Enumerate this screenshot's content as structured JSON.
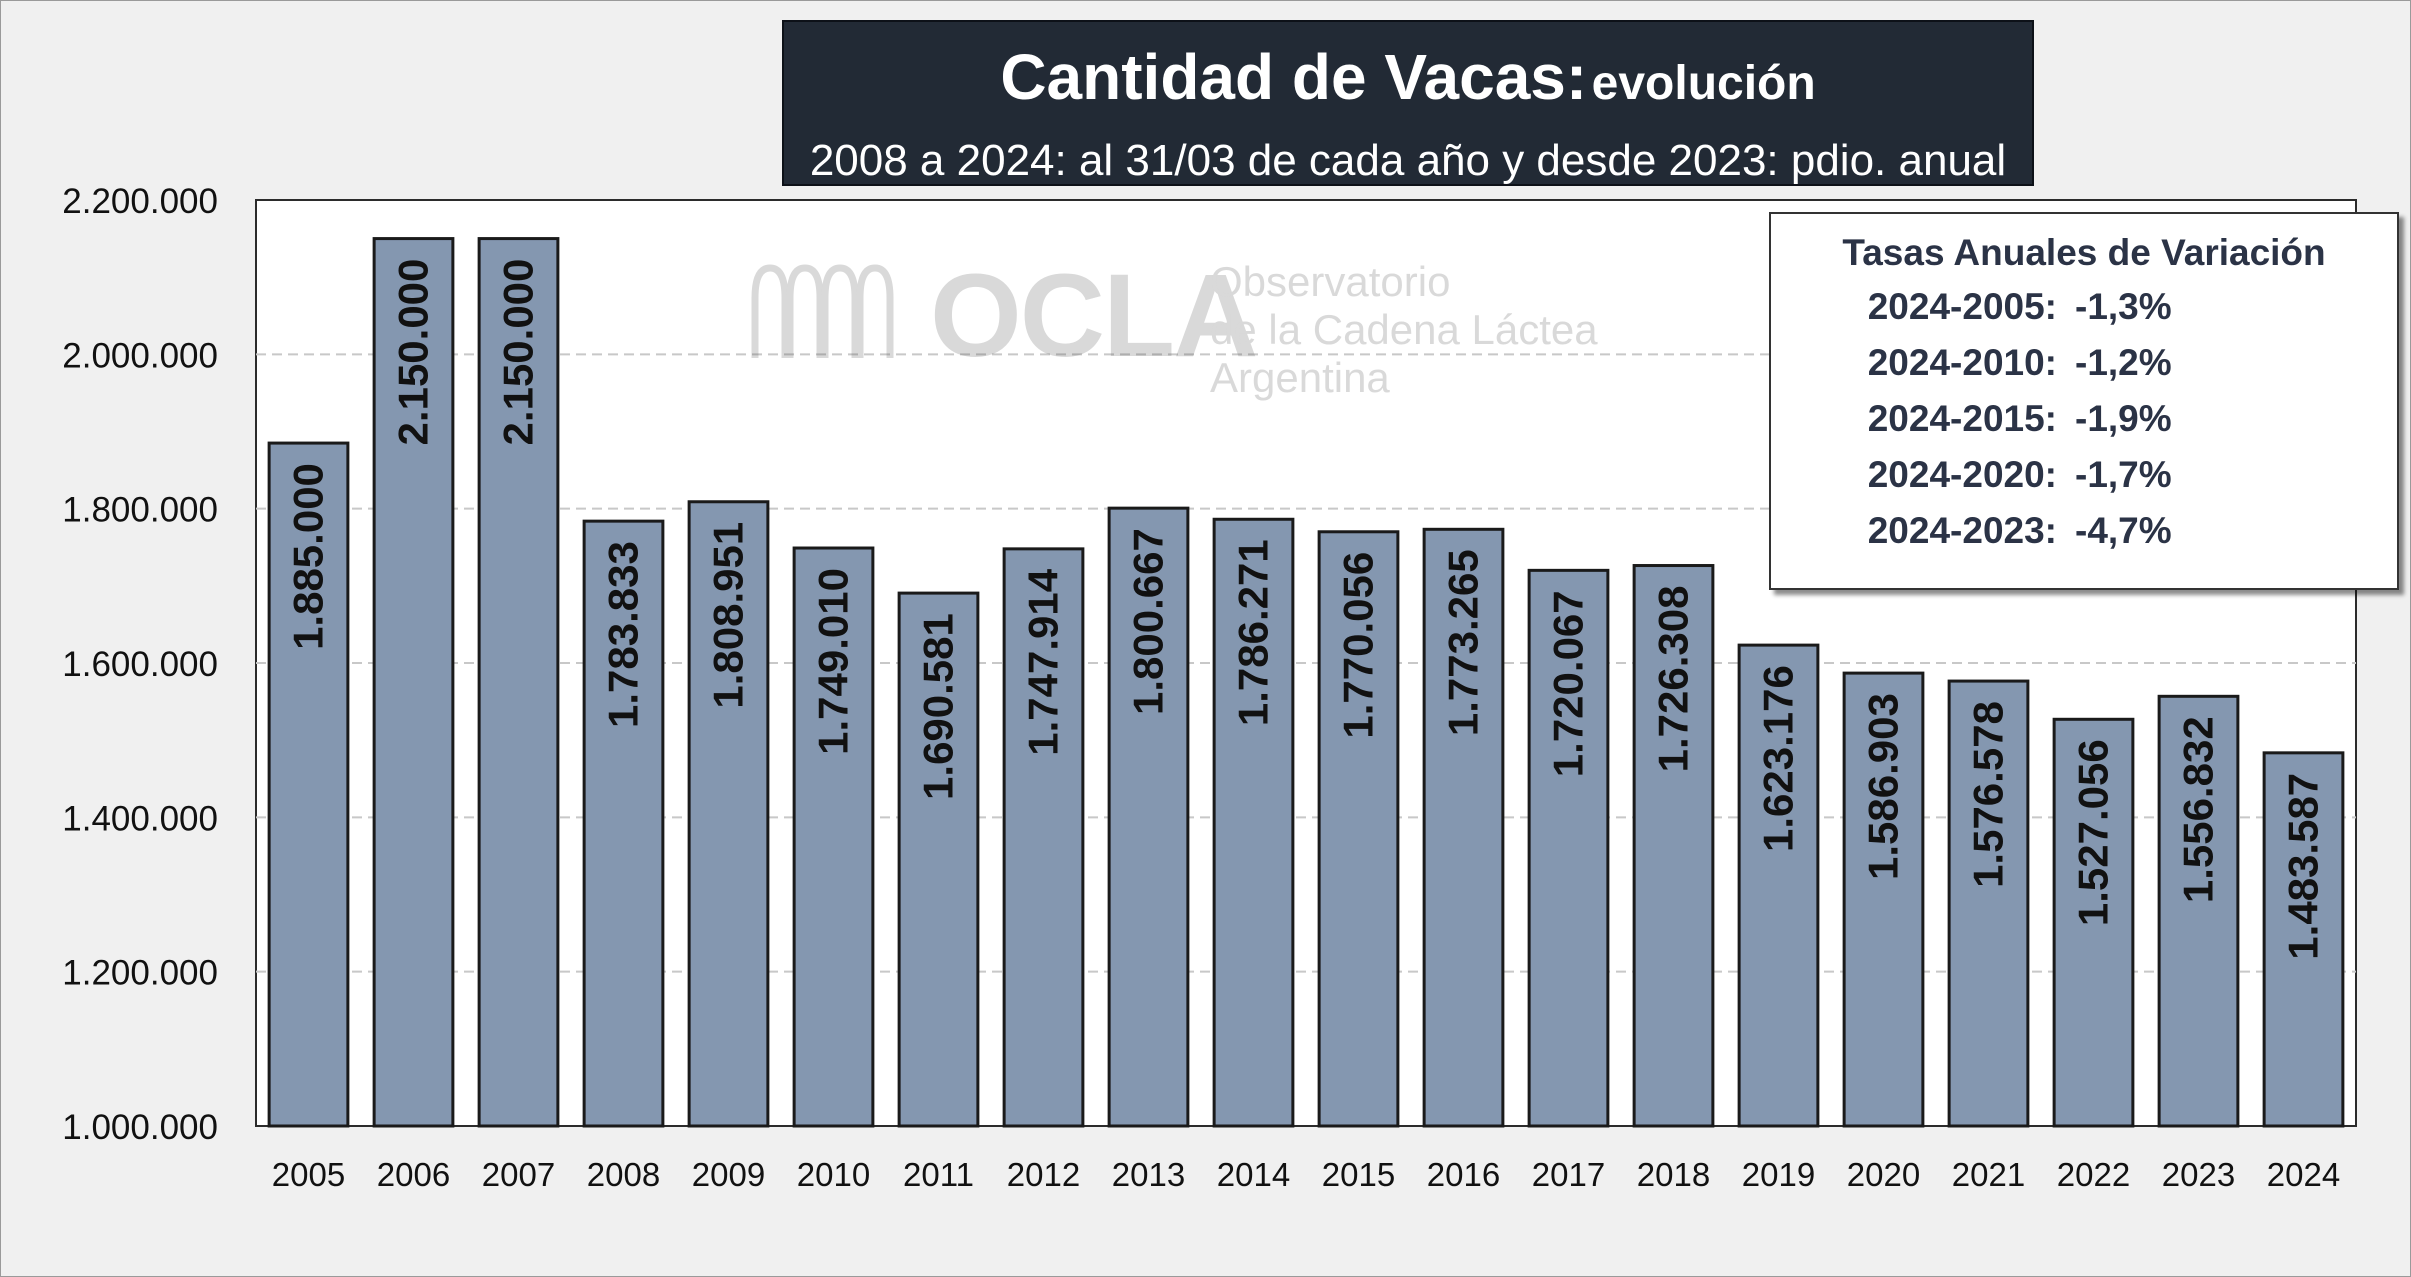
{
  "title": {
    "main": "Cantidad de Vacas:",
    "suffix": "evolución",
    "subtitle": "2008 a 2024: al 31/03 de cada año y desde 2023: pdio. anual"
  },
  "watermark": {
    "logo": "OCLA",
    "line1": "Observatorio",
    "line2": "de la Cadena Láctea",
    "line3": "Argentina"
  },
  "rates": {
    "title": "Tasas Anuales de Variación",
    "rows": [
      {
        "period": "2024-2005:",
        "value": "-1,3%"
      },
      {
        "period": "2024-2010:",
        "value": "-1,2%"
      },
      {
        "period": "2024-2015:",
        "value": "-1,9%"
      },
      {
        "period": "2024-2020:",
        "value": "-1,7%"
      },
      {
        "period": "2024-2023:",
        "value": "-4,7%"
      }
    ]
  },
  "colors": {
    "bar_fill": "#8497b0",
    "bar_stroke": "#1a1a1a",
    "title_bg": "#222a35",
    "grid": "#c8c8c8"
  },
  "chart_data": {
    "type": "bar",
    "categories": [
      "2005",
      "2006",
      "2007",
      "2008",
      "2009",
      "2010",
      "2011",
      "2012",
      "2013",
      "2014",
      "2015",
      "2016",
      "2017",
      "2018",
      "2019",
      "2020",
      "2021",
      "2022",
      "2023",
      "2024"
    ],
    "values": [
      1885000,
      2150000,
      2150000,
      1783833,
      1808951,
      1749010,
      1690581,
      1747914,
      1800667,
      1786271,
      1770056,
      1773265,
      1720067,
      1726308,
      1623176,
      1586903,
      1576578,
      1527056,
      1556832,
      1483587
    ],
    "value_labels": [
      "1.885.000",
      "2.150.000",
      "2.150.000",
      "1.783.833",
      "1.808.951",
      "1.749.010",
      "1.690.581",
      "1.747.914",
      "1.800.667",
      "1.786.271",
      "1.770.056",
      "1.773.265",
      "1.720.067",
      "1.726.308",
      "1.623.176",
      "1.586.903",
      "1.576.578",
      "1.527.056",
      "1.556.832",
      "1.483.587"
    ],
    "ylim": [
      1000000,
      2200000
    ],
    "yticks": [
      1000000,
      1200000,
      1400000,
      1600000,
      1800000,
      2000000,
      2200000
    ],
    "ytick_labels": [
      "1.000.000",
      "1.200.000",
      "1.400.000",
      "1.600.000",
      "1.800.000",
      "2.000.000",
      "2.200.000"
    ],
    "grid": true,
    "xlabel": "",
    "ylabel": ""
  }
}
